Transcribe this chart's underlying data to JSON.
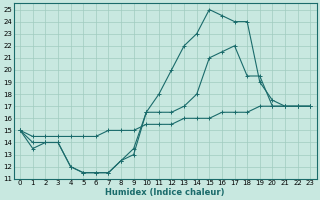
{
  "xlabel": "Humidex (Indice chaleur)",
  "ylabel": "",
  "xlim": [
    -0.5,
    23.5
  ],
  "ylim": [
    11,
    25.5
  ],
  "xticks": [
    0,
    1,
    2,
    3,
    4,
    5,
    6,
    7,
    8,
    9,
    10,
    11,
    12,
    13,
    14,
    15,
    16,
    17,
    18,
    19,
    20,
    21,
    22,
    23
  ],
  "yticks": [
    11,
    12,
    13,
    14,
    15,
    16,
    17,
    18,
    19,
    20,
    21,
    22,
    23,
    24,
    25
  ],
  "bg_color": "#c8e8e0",
  "grid_color": "#a0ccc0",
  "line_color": "#1a6b6b",
  "line1_x": [
    0,
    1,
    2,
    3,
    4,
    5,
    6,
    7,
    8,
    9,
    10,
    11,
    12,
    13,
    14,
    15,
    16,
    17,
    18,
    19,
    20,
    21,
    22,
    23
  ],
  "line1_y": [
    15,
    13.5,
    14,
    14,
    12,
    11.5,
    11.5,
    11.5,
    12.5,
    13,
    16.5,
    18,
    20,
    22,
    23,
    25,
    24.5,
    24,
    24,
    19.0,
    17.5,
    17,
    17,
    17
  ],
  "line2_x": [
    0,
    1,
    2,
    3,
    4,
    5,
    6,
    7,
    8,
    9,
    10,
    11,
    12,
    13,
    14,
    15,
    16,
    17,
    18,
    19,
    20,
    21,
    22,
    23
  ],
  "line2_y": [
    15,
    14,
    14,
    14,
    12,
    11.5,
    11.5,
    11.5,
    12.5,
    13.5,
    16.5,
    16.5,
    16.5,
    17,
    18,
    21,
    21.5,
    22,
    19.5,
    19.5,
    17,
    17,
    17,
    17
  ],
  "line3_x": [
    0,
    1,
    2,
    3,
    4,
    5,
    6,
    7,
    8,
    9,
    10,
    11,
    12,
    13,
    14,
    15,
    16,
    17,
    18,
    19,
    20,
    21,
    22,
    23
  ],
  "line3_y": [
    15,
    14.5,
    14.5,
    14.5,
    14.5,
    14.5,
    14.5,
    15,
    15,
    15,
    15.5,
    15.5,
    15.5,
    16,
    16,
    16,
    16.5,
    16.5,
    16.5,
    17,
    17,
    17,
    17,
    17
  ]
}
